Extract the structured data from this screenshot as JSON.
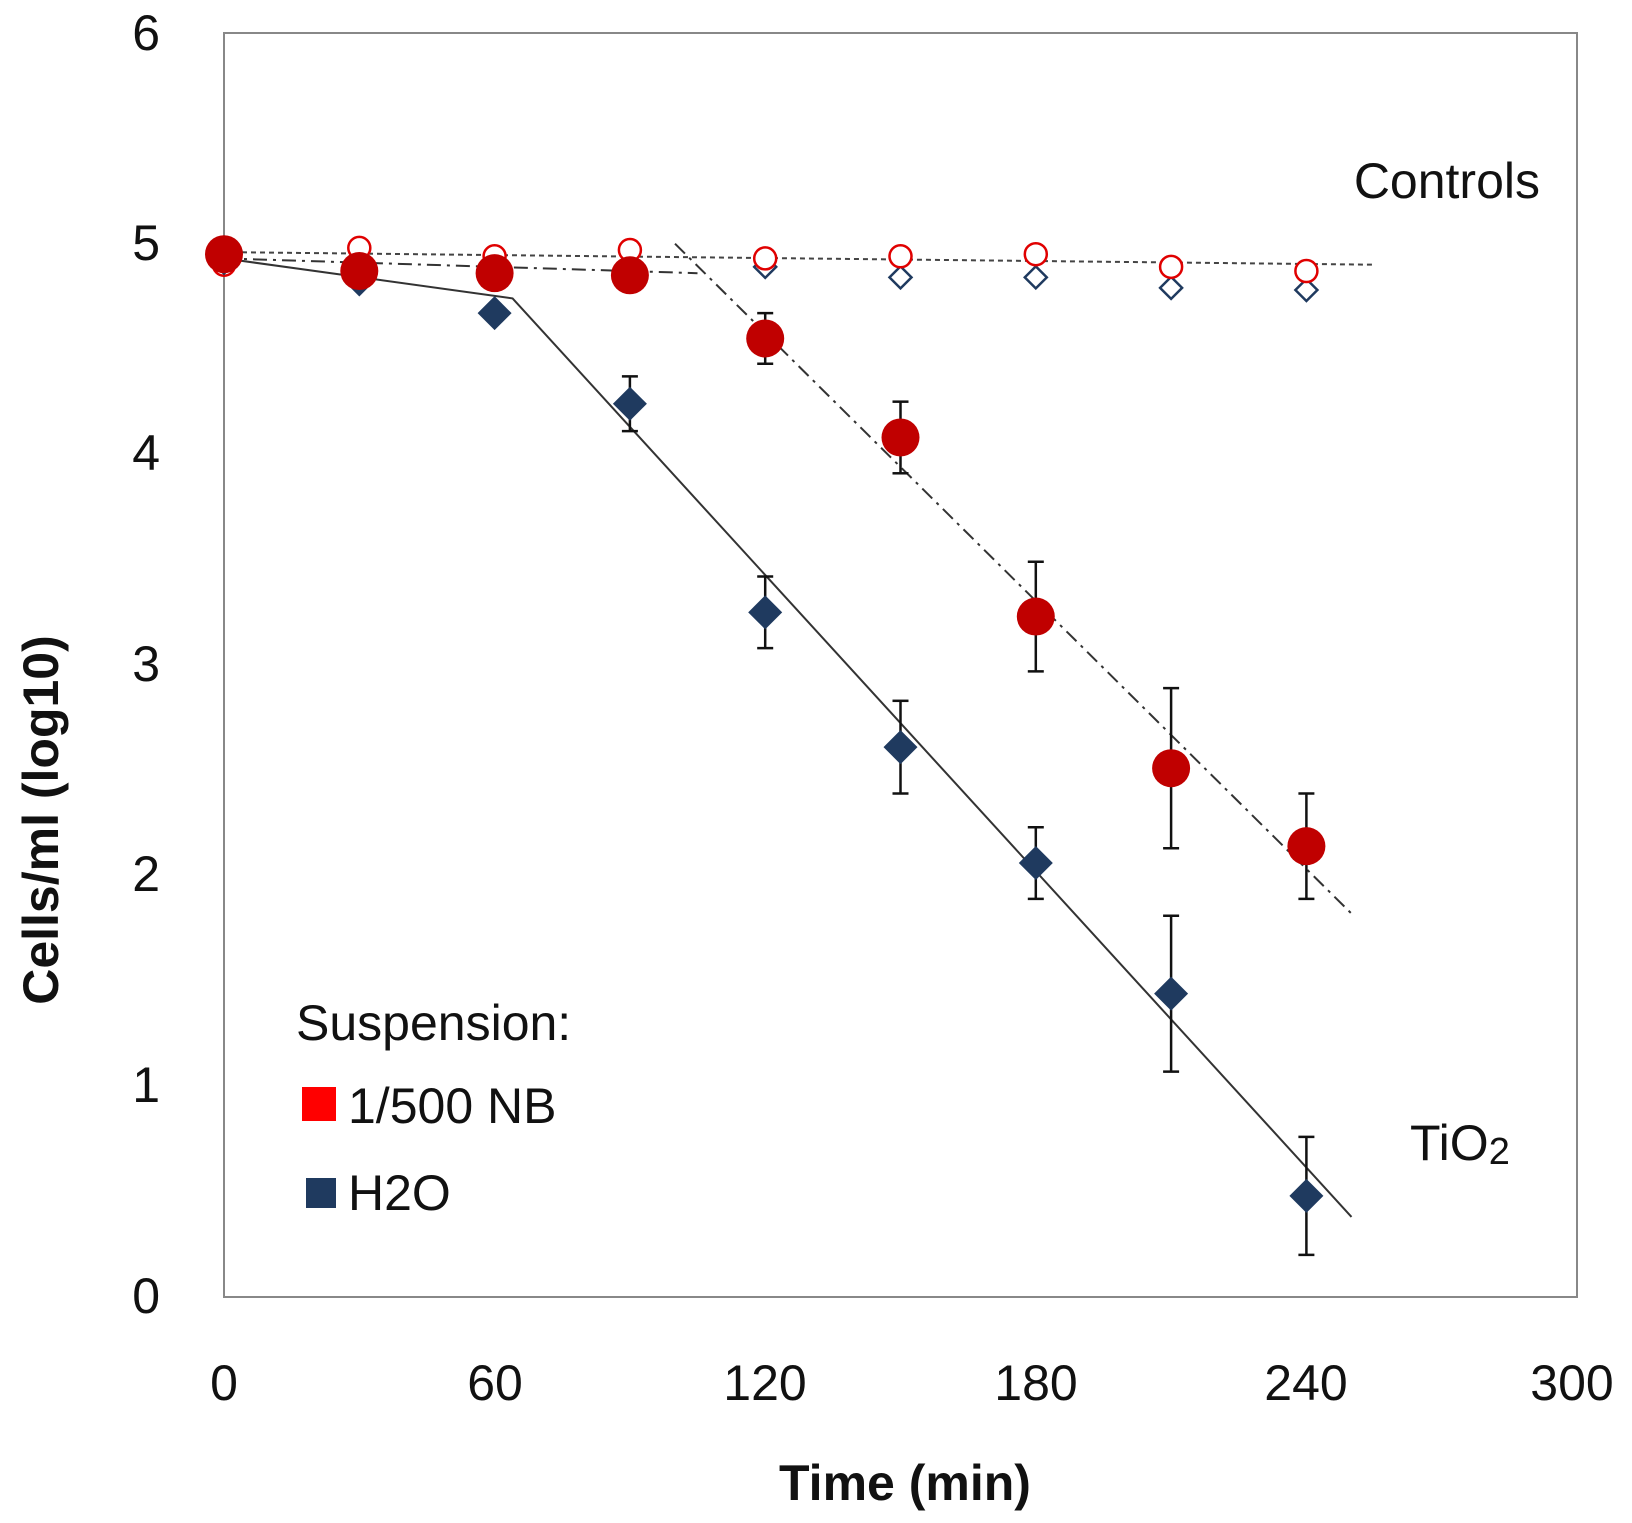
{
  "chart_data": {
    "type": "scatter",
    "xlabel": "Time (min)",
    "ylabel": "Cells/ml (log10)",
    "xlim": [
      0,
      300
    ],
    "ylim": [
      0,
      6
    ],
    "x_ticks": [
      "0",
      "60",
      "120",
      "180",
      "240",
      "300"
    ],
    "y_ticks": [
      "0",
      "1",
      "2",
      "3",
      "4",
      "5",
      "6"
    ],
    "grid": false,
    "legend": {
      "title": "Suspension:",
      "position": "bottom-left",
      "entries": [
        {
          "label": "1/500 NB",
          "color": "#ff0000",
          "marker": "square"
        },
        {
          "label": "H2O",
          "color": "#1f3a5f",
          "marker": "square"
        }
      ]
    },
    "annotations": [
      {
        "text": "Controls"
      },
      {
        "text_main": "TiO",
        "text_sub": "2"
      }
    ],
    "series": [
      {
        "name": "1/500 NB (TiO2)",
        "marker": "circle-filled",
        "color": "#c00000",
        "x": [
          0,
          30,
          60,
          90,
          120,
          150,
          180,
          210,
          240
        ],
        "y": [
          4.95,
          4.87,
          4.86,
          4.85,
          4.55,
          4.08,
          3.23,
          2.51,
          2.14
        ],
        "err": [
          0,
          0,
          0,
          0,
          0.12,
          0.17,
          0.26,
          0.38,
          0.25
        ]
      },
      {
        "name": "H2O (TiO2)",
        "marker": "diamond-filled",
        "color": "#1f3a5f",
        "x": [
          0,
          30,
          60,
          90,
          120,
          150,
          180,
          210,
          240
        ],
        "y": [
          4.93,
          4.83,
          4.67,
          4.24,
          3.25,
          2.61,
          2.06,
          1.44,
          0.48
        ],
        "err": [
          0,
          0,
          0,
          0.13,
          0.17,
          0.22,
          0.17,
          0.37,
          0.28
        ]
      },
      {
        "name": "1/500 NB (Control)",
        "marker": "circle-open",
        "color": "#e00000",
        "x": [
          0,
          30,
          60,
          90,
          120,
          150,
          180,
          210,
          240
        ],
        "y": [
          4.9,
          4.98,
          4.94,
          4.97,
          4.93,
          4.94,
          4.95,
          4.89,
          4.87
        ]
      },
      {
        "name": "H2O (Control)",
        "marker": "diamond-open",
        "color": "#1f3a5f",
        "x": [
          0,
          30,
          60,
          90,
          120,
          150,
          180,
          210,
          240
        ],
        "y": [
          4.93,
          4.85,
          4.88,
          4.85,
          4.89,
          4.84,
          4.84,
          4.79,
          4.78
        ]
      }
    ],
    "trendlines": [
      {
        "name": "H2O fit",
        "style": "solid",
        "points": [
          [
            0,
            4.93
          ],
          [
            64,
            4.74
          ],
          [
            250,
            0.38
          ]
        ]
      },
      {
        "name": "NB fit",
        "style": "dash-dot",
        "points": [
          [
            0,
            4.93
          ],
          [
            105,
            4.86
          ]
        ]
      },
      {
        "name": "NB fit decline",
        "style": "dash-dot",
        "points": [
          [
            100,
            5.0
          ],
          [
            250,
            1.82
          ]
        ]
      },
      {
        "name": "Control fit",
        "style": "dotted",
        "points": [
          [
            0,
            4.96
          ],
          [
            255,
            4.9
          ]
        ]
      }
    ]
  }
}
